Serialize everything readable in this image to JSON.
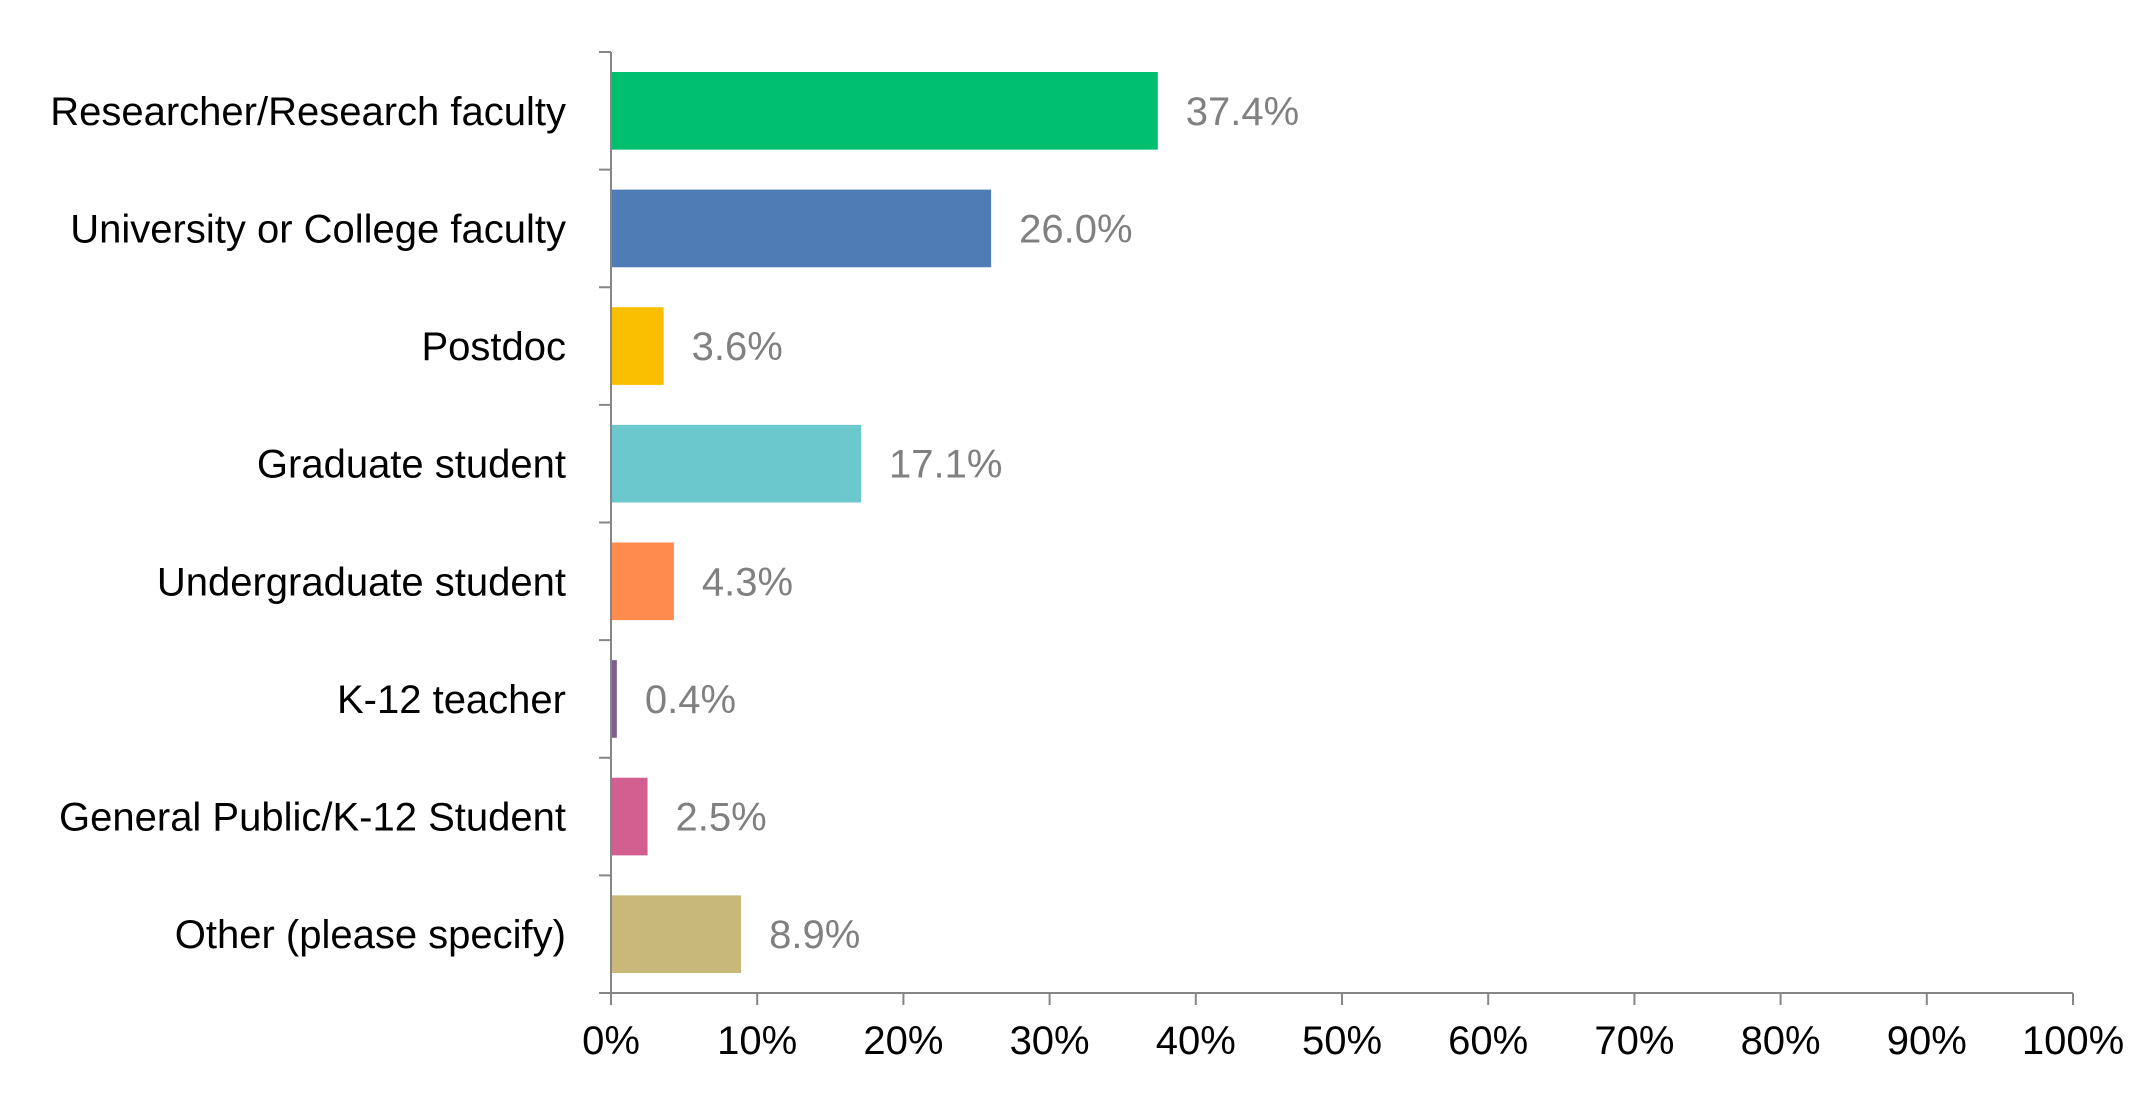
{
  "chart_data": {
    "type": "bar",
    "orientation": "horizontal",
    "title": "",
    "xlabel": "",
    "ylabel": "",
    "categories": [
      "Researcher/Research faculty",
      "University or College faculty",
      "Postdoc",
      "Graduate student",
      "Undergraduate student",
      "K-12 teacher",
      "General Public/K-12 Student",
      "Other (please specify)"
    ],
    "values": [
      37.4,
      26.0,
      3.6,
      17.1,
      4.3,
      0.4,
      2.5,
      8.9
    ],
    "value_labels": [
      "37.4%",
      "26.0%",
      "3.6%",
      "17.1%",
      "4.3%",
      "0.4%",
      "2.5%",
      "8.9%"
    ],
    "colors": [
      "#00BF6F",
      "#507CB6",
      "#F9BE00",
      "#6BC8CD",
      "#FF8B4F",
      "#7D5E90",
      "#D25F90",
      "#C8B879"
    ],
    "xlim": [
      0,
      100
    ],
    "xticks": [
      0,
      10,
      20,
      30,
      40,
      50,
      60,
      70,
      80,
      90,
      100
    ],
    "xtick_labels": [
      "0%",
      "10%",
      "20%",
      "30%",
      "40%",
      "50%",
      "60%",
      "70%",
      "80%",
      "90%",
      "100%"
    ],
    "grid": false,
    "legend": "none"
  }
}
